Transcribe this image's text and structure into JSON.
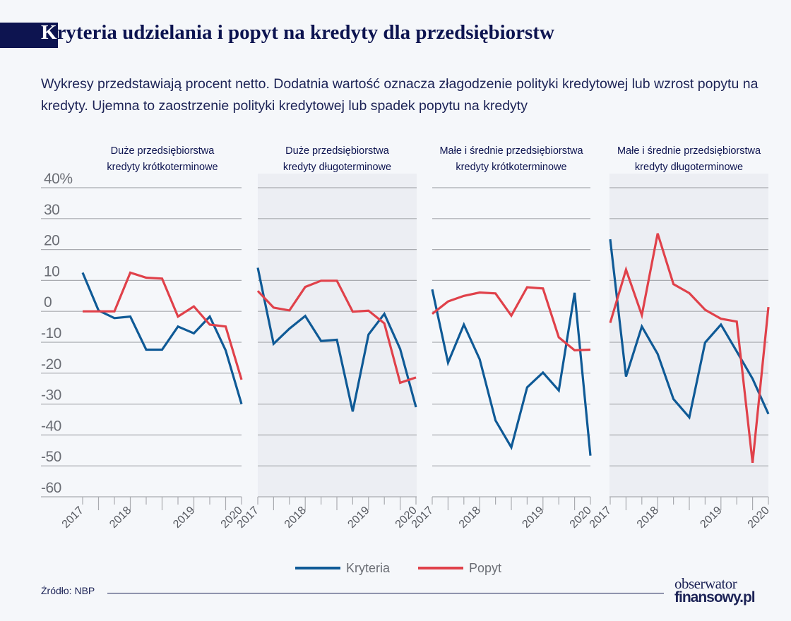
{
  "header": {
    "title_first_letter": "K",
    "title_rest": "ryteria udzielania i popyt na kredyty dla przedsiębiorstw",
    "subtitle": "Wykresy przedstawiają procent netto. Dodatnia wartość oznacza złagodzenie polityki kredytowej lub wzrost popytu na kredyty. Ujemna to zaostrzenie polityki kredytowej lub spadek popytu na kredyty"
  },
  "colors": {
    "kryteria": "#0f5a96",
    "popyt": "#e0414a",
    "title": "#0d1450",
    "shaded_panel": "#eceef3"
  },
  "chart_data": [
    {
      "type": "line",
      "title": [
        "Duże przedsiębiorstwa",
        "kredyty krótkoterminowe"
      ],
      "shaded": false,
      "x_tick_labels": [
        "2017",
        "",
        "",
        "2018",
        "",
        "",
        "",
        "2019",
        "",
        "",
        "2020"
      ],
      "ylim": [
        -60,
        40
      ],
      "y_ticks": [
        "40%",
        "30",
        "20",
        "10",
        "0",
        "-10",
        "-20",
        "-30",
        "-40",
        "-50",
        "-60"
      ],
      "series": [
        {
          "name": "Kryteria",
          "values": [
            12.5,
            0.3,
            -2.2,
            -1.7,
            -12.4,
            -12.4,
            -4.9,
            -7.1,
            -1.7,
            -12.6,
            -30
          ]
        },
        {
          "name": "Popyt",
          "values": [
            0,
            0,
            0,
            12.5,
            10.9,
            10.6,
            -1.7,
            1.6,
            -4.3,
            -4.9,
            -22.1
          ]
        }
      ]
    },
    {
      "type": "line",
      "title": [
        "Duże przedsiębiorstwa",
        "kredyty długoterminowe"
      ],
      "shaded": true,
      "x_tick_labels": [
        "2017",
        "",
        "",
        "2018",
        "",
        "",
        "",
        "2019",
        "",
        "",
        "2020"
      ],
      "ylim": [
        -60,
        40
      ],
      "series": [
        {
          "name": "Kryteria",
          "values": [
            14.1,
            -10.5,
            -5.6,
            -1.5,
            -9.6,
            -9.2,
            -32.4,
            -7.5,
            -0.8,
            -12.2,
            -31
          ]
        },
        {
          "name": "Popyt",
          "values": [
            6.6,
            1.2,
            0.3,
            7.9,
            9.9,
            9.9,
            -0.1,
            0.2,
            -3.9,
            -23.1,
            -21.4
          ]
        }
      ]
    },
    {
      "type": "line",
      "title": [
        "Małe i średnie przedsiębiorstwa",
        "kredyty krótkoterminowe"
      ],
      "shaded": false,
      "x_tick_labels": [
        "2017",
        "",
        "",
        "2018",
        "",
        "",
        "",
        "2019",
        "",
        "",
        "2020"
      ],
      "ylim": [
        -60,
        40
      ],
      "series": [
        {
          "name": "Kryteria",
          "values": [
            7.1,
            -16.6,
            -4.3,
            -15.5,
            -35.3,
            -44,
            -24.6,
            -19.8,
            -25.6,
            6.0,
            -46.7
          ]
        },
        {
          "name": "Popyt",
          "values": [
            -0.8,
            3.2,
            5.0,
            6.1,
            5.8,
            -1.4,
            7.8,
            7.4,
            -8.4,
            -12.6,
            -12.4
          ]
        }
      ]
    },
    {
      "type": "line",
      "title": [
        "Małe i średnie przedsiębiorstwa",
        "kredyty długoterminowe"
      ],
      "shaded": true,
      "x_tick_labels": [
        "2017",
        "",
        "",
        "2018",
        "",
        "",
        "",
        "2019",
        "",
        "",
        "2020"
      ],
      "ylim": [
        -60,
        40
      ],
      "series": [
        {
          "name": "Kryteria",
          "values": [
            23.3,
            -21.1,
            -4.9,
            -13.8,
            -28.4,
            -34.3,
            -10.1,
            -4.3,
            -13.0,
            -21.8,
            -33.2
          ]
        },
        {
          "name": "Popyt",
          "values": [
            -3.7,
            13.5,
            -1.2,
            25.2,
            8.8,
            5.9,
            0.5,
            -2.4,
            -3.3,
            -49,
            1.4
          ]
        }
      ]
    }
  ],
  "legend": {
    "position": "bottom",
    "items": [
      "Kryteria",
      "Popyt"
    ]
  },
  "footer": {
    "source": "Źródło: NBP",
    "logo_line1": "obserwator",
    "logo_line2": "finansowy.pl"
  }
}
